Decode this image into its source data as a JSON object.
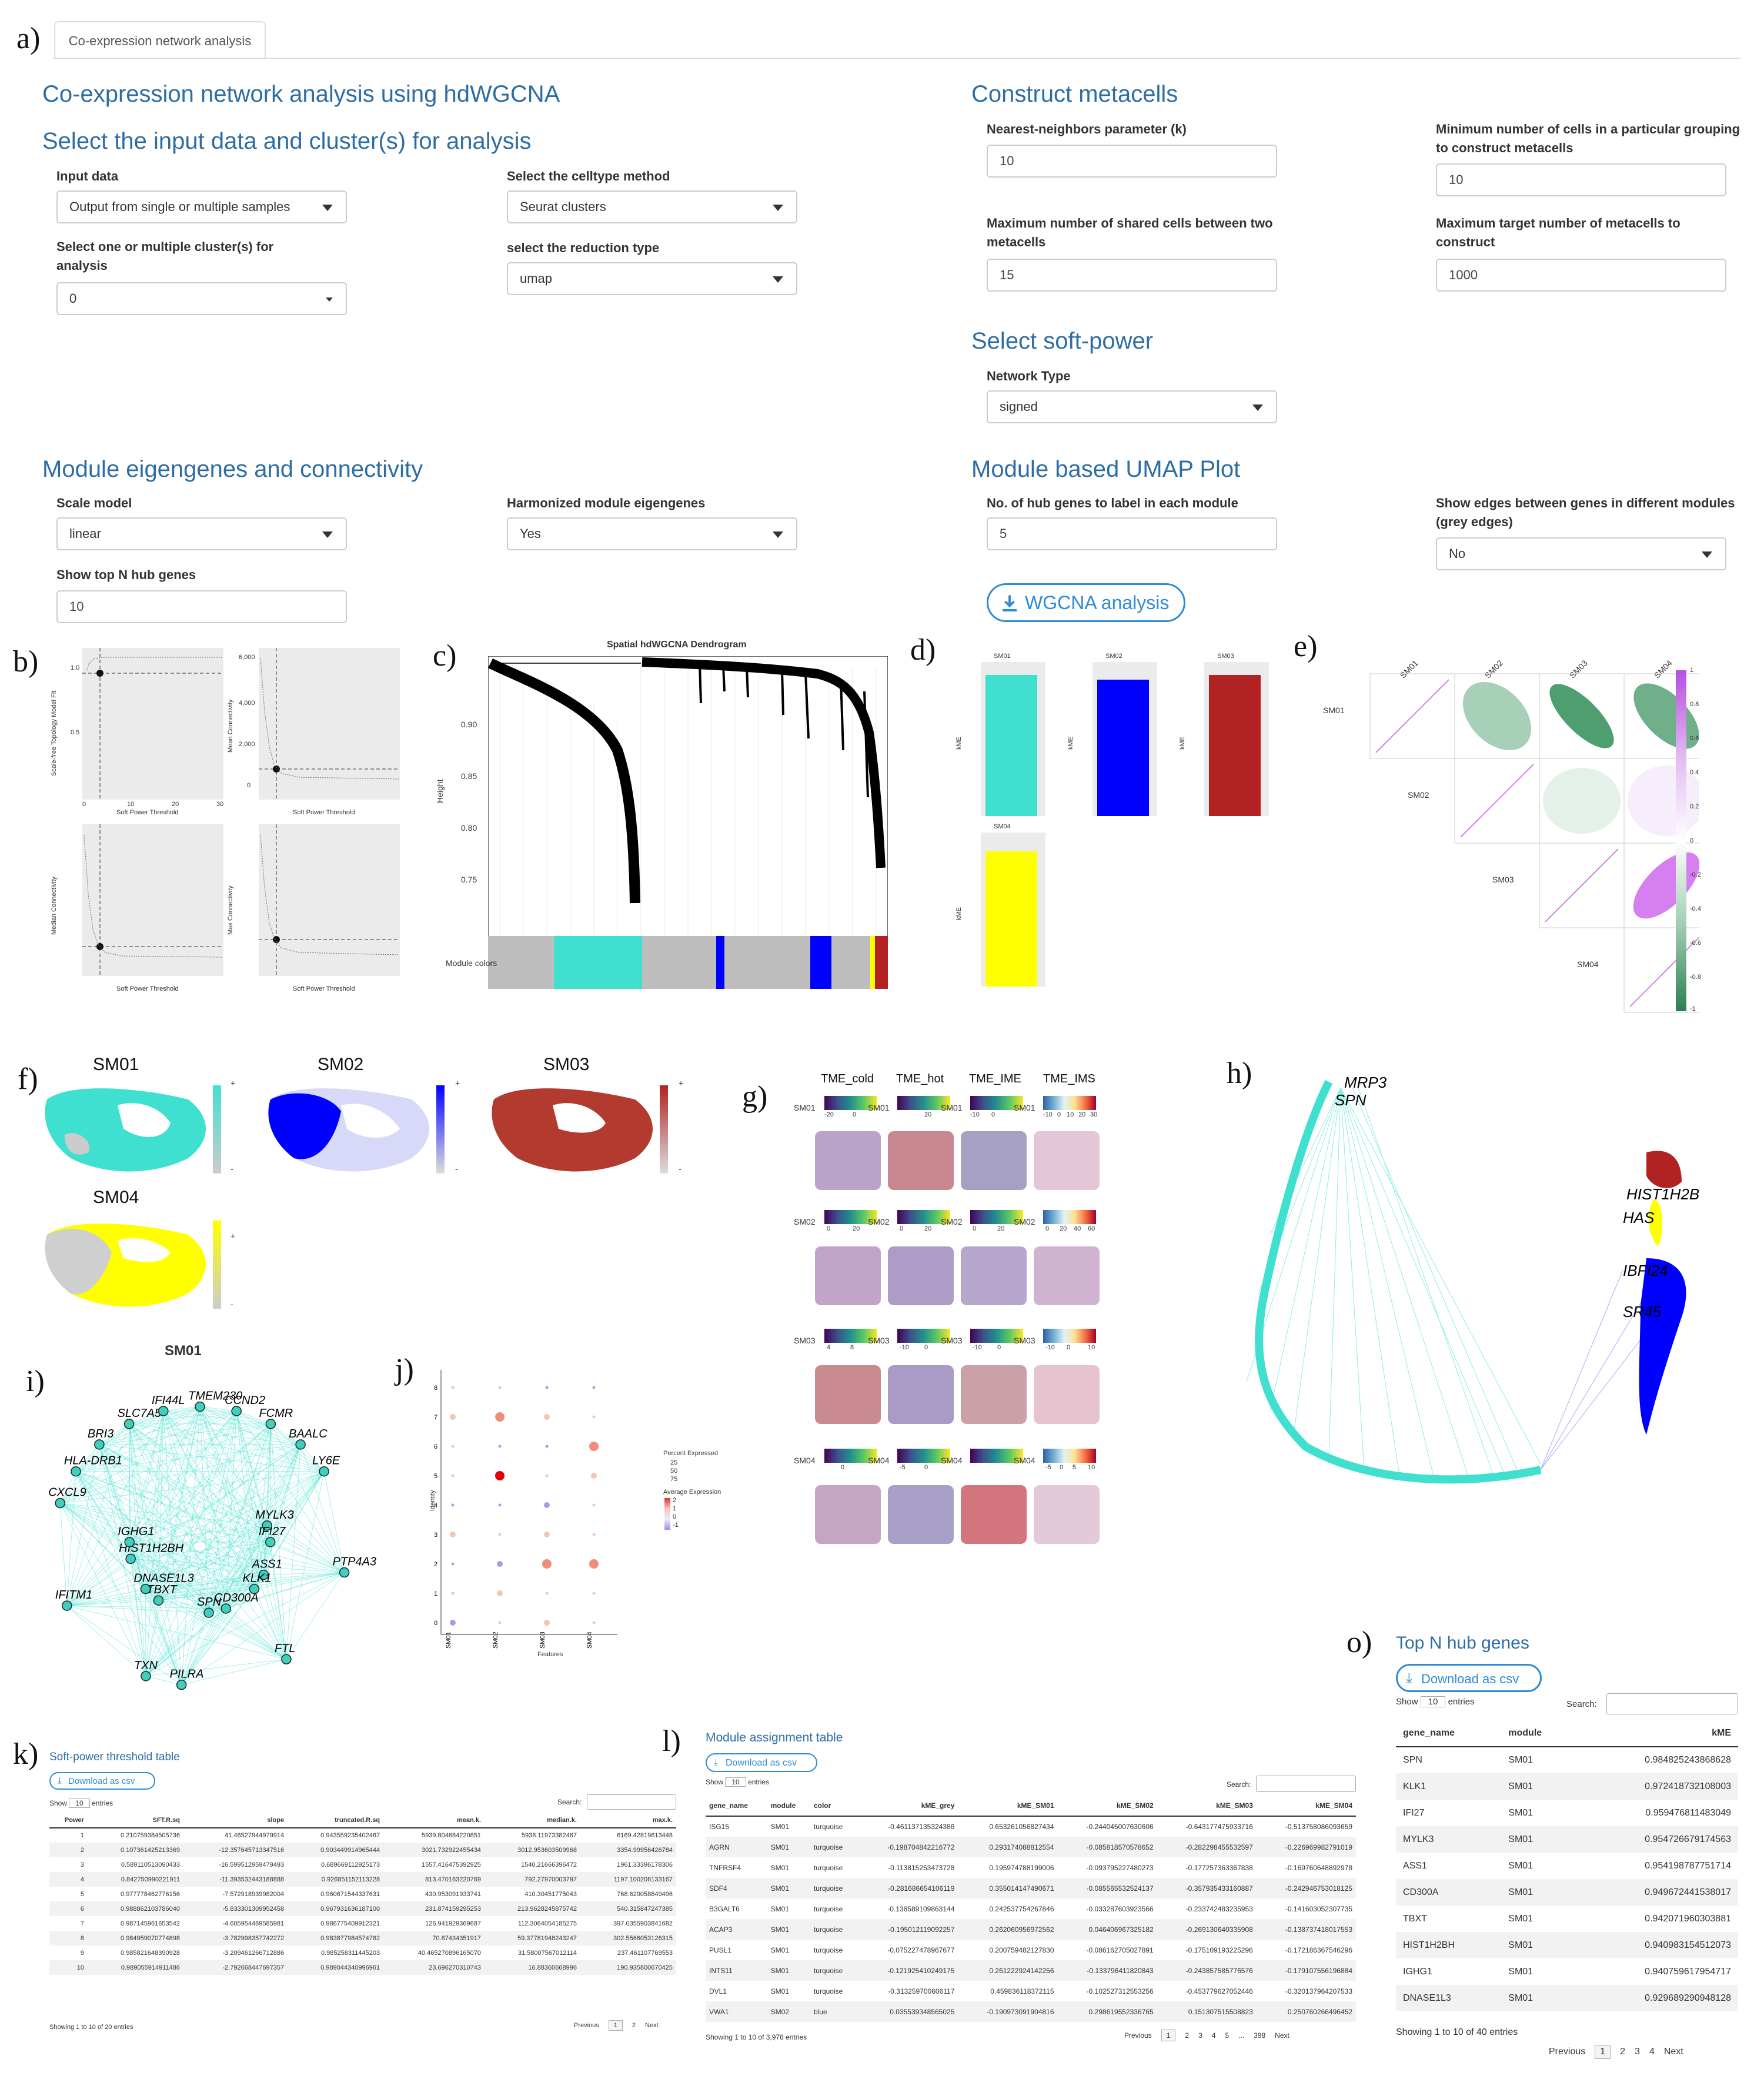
{
  "panel_labels": {
    "a": "a)",
    "b": "b)",
    "c": "c)",
    "d": "d)",
    "e": "e)",
    "f": "f)",
    "g": "g)",
    "h": "h)",
    "i": "i)",
    "j": "j)",
    "k": "k)",
    "l": "l)",
    "o": "o)"
  },
  "tab": {
    "label": "Co-expression network analysis"
  },
  "left": {
    "title": "Co-expression network analysis using hdWGCNA",
    "input_section": "Select the input data and cluster(s) for analysis",
    "input_data": {
      "label": "Input data",
      "value": "Output from single or multiple samples"
    },
    "celltype": {
      "label": "Select the celltype method",
      "value": "Seurat clusters"
    },
    "clusters": {
      "label": "Select one or multiple cluster(s) for analysis",
      "value": "0"
    },
    "reduction": {
      "label": "select the reduction type",
      "value": "umap"
    },
    "eigen_section": "Module eigengenes and connectivity",
    "scale_model": {
      "label": "Scale model",
      "value": "linear"
    },
    "harmonized": {
      "label": "Harmonized module eigengenes",
      "value": "Yes"
    },
    "topn": {
      "label": "Show top N hub genes",
      "value": "10"
    }
  },
  "right": {
    "metacell_section": "Construct metacells",
    "knn": {
      "label": "Nearest-neighbors parameter (k)",
      "value": "10"
    },
    "min_cells": {
      "label": "Minimum number of cells in a particular grouping to construct metacells",
      "value": "10"
    },
    "max_shared": {
      "label": "Maximum number of shared cells between two metacells",
      "value": "15"
    },
    "max_target": {
      "label": "Maximum target number of metacells to construct",
      "value": "1000"
    },
    "softpower_section": "Select soft-power",
    "network_type": {
      "label": "Network Type",
      "value": "signed"
    },
    "umap_section": "Module based UMAP Plot",
    "hub_label": {
      "label": "No. of hub genes to label in each module",
      "value": "5"
    },
    "edges": {
      "label": "Show edges between genes in different modules (grey edges)",
      "value": "No"
    },
    "run_button": "WGCNA analysis"
  },
  "softpower_plots": {
    "y1": "Scale-free Topology Model Fit",
    "y2": "Mean Connectivity",
    "y3": "Median Connectivity",
    "y4": "Max Connectivity",
    "x": "Soft Power Threshold",
    "ticks": [
      "0",
      "10",
      "20",
      "30"
    ],
    "yt2": [
      "0",
      "2,000",
      "4,000",
      "6,000"
    ],
    "yt1": [
      "0.5",
      "1.0"
    ]
  },
  "dendrogram": {
    "title": "Spatial hdWGCNA Dendrogram",
    "ylabel": "Height",
    "yticks": [
      "0.90",
      "0.85",
      "0.80",
      "0.75"
    ],
    "colors_label": "Module colors"
  },
  "kme": {
    "modules": [
      "SM01",
      "SM02",
      "SM03",
      "SM04"
    ],
    "ylabel": "kME",
    "colors": [
      "#40e0d0",
      "#0000ff",
      "#b22222",
      "#ffff00"
    ]
  },
  "corr": {
    "modules": [
      "SM01",
      "SM02",
      "SM03",
      "SM04"
    ],
    "scale": [
      "1",
      "0.8",
      "0.6",
      "0.4",
      "0.2",
      "0",
      "-0.2",
      "-0.4",
      "-0.6",
      "-0.8",
      "-1"
    ]
  },
  "umaps": {
    "labels": [
      "SM01",
      "SM02",
      "SM03",
      "SM04"
    ],
    "plus": "+",
    "minus": "-"
  },
  "tme": {
    "headers": [
      "TME_cold",
      "TME_hot",
      "TME_IME",
      "TME_IMS"
    ],
    "rows": [
      "SM01",
      "SM02",
      "SM03",
      "SM04"
    ],
    "scales": [
      [
        "-20",
        "0",
        "20",
        "-10",
        "0",
        "-10",
        "0",
        "10",
        "20",
        "30"
      ],
      [
        "0",
        "20",
        "0",
        "20",
        "0",
        "20",
        "0",
        "20",
        "40",
        "60"
      ],
      [
        "4",
        "8",
        "-10",
        "0",
        "-10",
        "0",
        "-10",
        "0",
        "10"
      ],
      [
        "0",
        "-5",
        "0",
        "-5",
        "0",
        "5",
        "10"
      ]
    ]
  },
  "network_i": {
    "title": "SM01",
    "genes": [
      "TMEM230",
      "CCND2",
      "FCMR",
      "BAALC",
      "LY6E",
      "MYLK3",
      "IFI27",
      "PTP4A3",
      "ASS1",
      "KLK1",
      "FTL",
      "CD300A",
      "SPN",
      "PILRA",
      "TXN",
      "TBXT",
      "DNASE1L3",
      "IFITM1",
      "HIST1H2BH",
      "IGHG1",
      "CXCL9",
      "HLA-DRB1",
      "BRI3",
      "SLC7A5",
      "IFI44L"
    ]
  },
  "dotplot": {
    "ylabel": "Identity",
    "xlabel": "Features",
    "features": [
      "SM01",
      "SM02",
      "SM03",
      "SM04"
    ],
    "identities": [
      "0",
      "1",
      "2",
      "3",
      "4",
      "5",
      "6",
      "7",
      "8"
    ],
    "legend_pct": "Percent Expressed",
    "pct": [
      "25",
      "50",
      "75"
    ],
    "legend_avg": "Average Expression",
    "avg": [
      "2",
      "1",
      "0",
      "-1"
    ]
  },
  "hub_network_labels": [
    "MRP3",
    "SPN",
    "HIST1H2B",
    "HAS",
    "IBFI24",
    "SR45"
  ],
  "softpower_table": {
    "title": "Soft-power threshold table",
    "download": "Download as csv",
    "show": "Show",
    "entries": "entries",
    "page_len": "10",
    "search": "Search:",
    "columns": [
      "Power",
      "SFT.R.sq",
      "slope",
      "truncated.R.sq",
      "mean.k.",
      "median.k.",
      "max.k."
    ],
    "rows": [
      [
        "1",
        "0.210759384505736",
        "41.46527944979914",
        "0.943559235402467",
        "5939.804684220851",
        "5938.11973382467",
        "6169.42819613448"
      ],
      [
        "2",
        "0.107361425213369",
        "-12.357645713347516",
        "0.903449914965444",
        "3021.732922455434",
        "3012.953603509968",
        "3354.99956426784"
      ],
      [
        "3",
        "0.589110513090433",
        "-16.599512959479493",
        "0.689669112925173",
        "1557.416475392925",
        "1540.21666396472",
        "1961.33396178306"
      ],
      [
        "4",
        "0.842750990221911",
        "-11.393532443188888",
        "0.926851152113228",
        "813.470163220769",
        "792.27970003797",
        "1197.100206133167"
      ],
      [
        "5",
        "0.977778462776156",
        "-7.572918939982004",
        "0.960671544337631",
        "430.953091933741",
        "410.30451775043",
        "768.629058649496"
      ],
      [
        "6",
        "0.988862103786040",
        "-5.833301309952458",
        "0.967931636187100",
        "231.874159295253",
        "213.9628245875742",
        "540.315847247385"
      ],
      [
        "7",
        "0.987145961653542",
        "-4.605954469585981",
        "0.986775409912321",
        "126.941929369687",
        "112.3064054185275",
        "397.0355903841682"
      ],
      [
        "8",
        "0.984959070774898",
        "-3.782998357742272",
        "0.983877984574782",
        "70.87434351917",
        "59.37781948243247",
        "302.5566053126315"
      ],
      [
        "9",
        "0.985821648390928",
        "-3.209461266712886",
        "0.985258311445203",
        "40.465270896165070",
        "31.58007567012114",
        "237.461107769553"
      ],
      [
        "10",
        "0.989055914911486",
        "-2.792668447697357",
        "0.989044340996961",
        "23.696270310743",
        "16.88360668996",
        "190.935800670425"
      ]
    ],
    "info": "Showing 1 to 10 of 20 entries",
    "prev": "Previous",
    "next": "Next",
    "pages": [
      "1",
      "2"
    ]
  },
  "module_table": {
    "title": "Module assignment table",
    "download": "Download as csv",
    "show": "Show",
    "entries": "entries",
    "page_len": "10",
    "search": "Search:",
    "columns": [
      "gene_name",
      "module",
      "color",
      "kME_grey",
      "kME_SM01",
      "kME_SM02",
      "kME_SM03",
      "kME_SM04"
    ],
    "rows": [
      [
        "ISG15",
        "SM01",
        "turquoise",
        "-0.461137135324386",
        "0.653261056827434",
        "-0.244045007630606",
        "-0.643177475933716",
        "-0.513758086093659"
      ],
      [
        "AGRN",
        "SM01",
        "turquoise",
        "-0.198704842216772",
        "0.293174088812554",
        "-0.085818570578652",
        "-0.282298455532597",
        "-0.226969982791019"
      ],
      [
        "TNFRSF4",
        "SM01",
        "turquoise",
        "-0.113815253473728",
        "0.195974788199006",
        "-0.093795227480273",
        "-0.177257363367838",
        "-0.169760648892978"
      ],
      [
        "SDF4",
        "SM01",
        "turquoise",
        "-0.281686654106119",
        "0.355014147490671",
        "-0.085565532524137",
        "-0.357935433160887",
        "-0.242946753018125"
      ],
      [
        "B3GALT6",
        "SM01",
        "turquoise",
        "-0.138589109863144",
        "0.242537754267846",
        "-0.033287603923566",
        "-0.233742483235953",
        "-0.141603052307735"
      ],
      [
        "ACAP3",
        "SM01",
        "turquoise",
        "-0.195012119092257",
        "0.262060956972562",
        "0.046406967325182",
        "-0.269130640335908",
        "-0.138737418017553"
      ],
      [
        "PUSL1",
        "SM01",
        "turquoise",
        "-0.075227478967677",
        "0.200759482127830",
        "-0.086162705027891",
        "-0.175109193225296",
        "-0.172186367546296"
      ],
      [
        "INTS11",
        "SM01",
        "turquoise",
        "-0.121925410249175",
        "0.261222924142256",
        "-0.133796411820843",
        "-0.243857585776576",
        "-0.179107556196884"
      ],
      [
        "DVL1",
        "SM01",
        "turquoise",
        "-0.313259700606117",
        "0.459836118372115",
        "-0.102527312553256",
        "-0.453779627052446",
        "-0.320137964207533"
      ],
      [
        "VWA1",
        "SM02",
        "blue",
        "0.035539348565025",
        "-0.190973091904816",
        "0.298619552336765",
        "0.151307515508823",
        "0.250760266496452"
      ]
    ],
    "info": "Showing 1 to 10 of 3,978 entries",
    "prev": "Previous",
    "next": "Next",
    "pages": [
      "1",
      "2",
      "3",
      "4",
      "5",
      "...",
      "398"
    ]
  },
  "hub_table": {
    "title": "Top N hub genes",
    "download": "Download as csv",
    "show": "Show",
    "entries": "entries",
    "page_len": "10",
    "search": "Search:",
    "columns": [
      "gene_name",
      "module",
      "kME"
    ],
    "rows": [
      [
        "SPN",
        "SM01",
        "0.984825243868628"
      ],
      [
        "KLK1",
        "SM01",
        "0.972418732108003"
      ],
      [
        "IFI27",
        "SM01",
        "0.959476811483049"
      ],
      [
        "MYLK3",
        "SM01",
        "0.954726679174563"
      ],
      [
        "ASS1",
        "SM01",
        "0.954198787751714"
      ],
      [
        "CD300A",
        "SM01",
        "0.949672441538017"
      ],
      [
        "TBXT",
        "SM01",
        "0.942071960303881"
      ],
      [
        "HIST1H2BH",
        "SM01",
        "0.940983154512073"
      ],
      [
        "IGHG1",
        "SM01",
        "0.940759617954717"
      ],
      [
        "DNASE1L3",
        "SM01",
        "0.929689290948128"
      ]
    ],
    "info": "Showing 1 to 10 of 40 entries",
    "prev": "Previous",
    "next": "Next",
    "pages": [
      "1",
      "2",
      "3",
      "4"
    ]
  }
}
